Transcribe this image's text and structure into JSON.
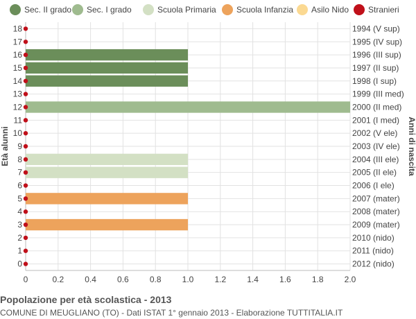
{
  "chart_data": {
    "type": "bar",
    "orientation": "horizontal",
    "ylabel": "Età alunni",
    "ylabel_right": "Anni di nascita",
    "xlim": [
      0,
      2.0
    ],
    "x_ticks": [
      "0",
      "0.2",
      "0.4",
      "0.6",
      "0.8",
      "1.0",
      "1.2",
      "1.4",
      "1.6",
      "1.8",
      "2.0"
    ],
    "grid": true,
    "legend_position": "top",
    "series": [
      {
        "name": "Sec. II grado",
        "color": "#6b8e5a"
      },
      {
        "name": "Sec. I grado",
        "color": "#9fbb8f"
      },
      {
        "name": "Scuola Primaria",
        "color": "#d3e0c4"
      },
      {
        "name": "Scuola Infanzia",
        "color": "#eda35c"
      },
      {
        "name": "Asilo Nido",
        "color": "#fbd992"
      },
      {
        "name": "Stranieri",
        "color": "#c0101a"
      }
    ],
    "rows": [
      {
        "age": "18",
        "birth": "1994 (V sup)",
        "value": 0,
        "series": "",
        "stranieri": 0
      },
      {
        "age": "17",
        "birth": "1995 (IV sup)",
        "value": 0,
        "series": "",
        "stranieri": 0
      },
      {
        "age": "16",
        "birth": "1996 (III sup)",
        "value": 1,
        "series": "Sec. II grado",
        "stranieri": 0
      },
      {
        "age": "15",
        "birth": "1997 (II sup)",
        "value": 1,
        "series": "Sec. II grado",
        "stranieri": 0
      },
      {
        "age": "14",
        "birth": "1998 (I sup)",
        "value": 1,
        "series": "Sec. II grado",
        "stranieri": 0
      },
      {
        "age": "13",
        "birth": "1999 (III med)",
        "value": 0,
        "series": "",
        "stranieri": 0
      },
      {
        "age": "12",
        "birth": "2000 (II med)",
        "value": 2,
        "series": "Sec. I grado",
        "stranieri": 0
      },
      {
        "age": "11",
        "birth": "2001 (I med)",
        "value": 0,
        "series": "",
        "stranieri": 0
      },
      {
        "age": "10",
        "birth": "2002 (V ele)",
        "value": 0,
        "series": "",
        "stranieri": 0
      },
      {
        "age": "9",
        "birth": "2003 (IV ele)",
        "value": 0,
        "series": "",
        "stranieri": 0
      },
      {
        "age": "8",
        "birth": "2004 (III ele)",
        "value": 1,
        "series": "Scuola Primaria",
        "stranieri": 0
      },
      {
        "age": "7",
        "birth": "2005 (II ele)",
        "value": 1,
        "series": "Scuola Primaria",
        "stranieri": 0
      },
      {
        "age": "6",
        "birth": "2006 (I ele)",
        "value": 0,
        "series": "",
        "stranieri": 0
      },
      {
        "age": "5",
        "birth": "2007 (mater)",
        "value": 1,
        "series": "Scuola Infanzia",
        "stranieri": 0
      },
      {
        "age": "4",
        "birth": "2008 (mater)",
        "value": 0,
        "series": "",
        "stranieri": 0
      },
      {
        "age": "3",
        "birth": "2009 (mater)",
        "value": 1,
        "series": "Scuola Infanzia",
        "stranieri": 0
      },
      {
        "age": "2",
        "birth": "2010 (nido)",
        "value": 0,
        "series": "",
        "stranieri": 0
      },
      {
        "age": "1",
        "birth": "2011 (nido)",
        "value": 0,
        "series": "",
        "stranieri": 0
      },
      {
        "age": "0",
        "birth": "2012 (nido)",
        "value": 0,
        "series": "",
        "stranieri": 0
      }
    ]
  },
  "footer": {
    "title": "Popolazione per età scolastica - 2013",
    "subtitle": "COMUNE DI MEUGLIANO (TO) - Dati ISTAT 1° gennaio 2013 - Elaborazione TUTTITALIA.IT"
  }
}
